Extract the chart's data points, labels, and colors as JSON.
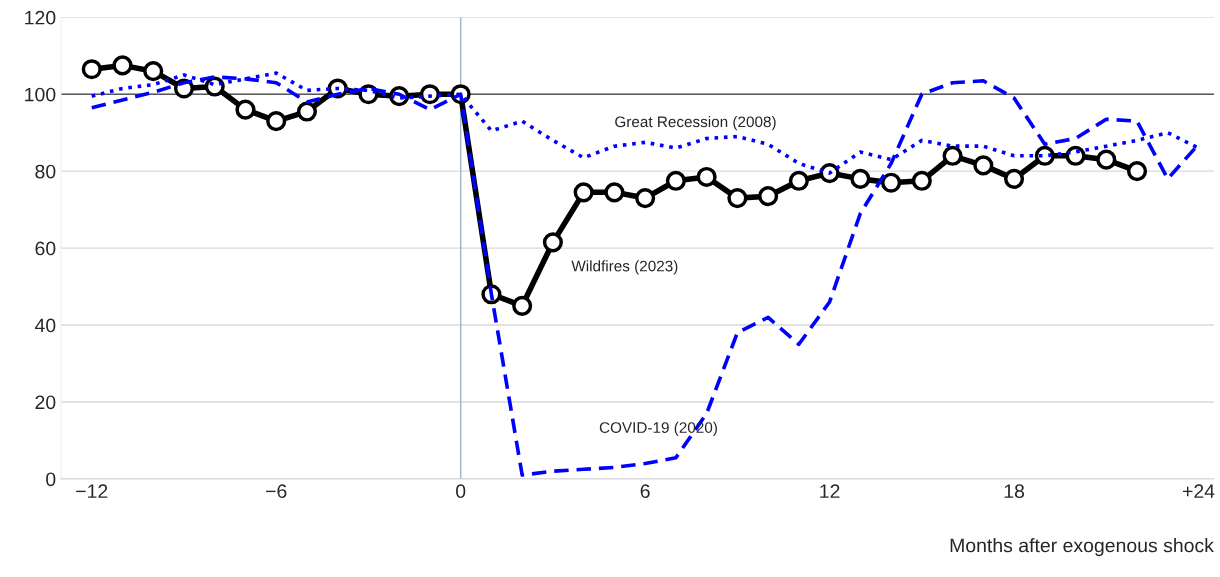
{
  "chart_data": {
    "type": "line",
    "xlabel": "Months after exogenous shock",
    "xlim": [
      -13,
      24.5
    ],
    "xticks": [
      -12,
      -6,
      0,
      6,
      12,
      18,
      {
        "value": 24,
        "label": "+24"
      }
    ],
    "ylim": [
      0,
      120
    ],
    "yticks": [
      0,
      20,
      40,
      60,
      80,
      100,
      120
    ],
    "grid": "y",
    "ref_lines": [
      {
        "axis": "y",
        "value": 100,
        "color": "#595959",
        "line_style": "solid"
      },
      {
        "axis": "x",
        "value": 0,
        "color": "#9db4c8",
        "line_style": "solid"
      }
    ],
    "series": [
      {
        "name": "Great Recession (2008)",
        "color": "#0000ff",
        "line_style": "dotted",
        "marker": "none",
        "x": [
          -12,
          -11,
          -10,
          -9,
          -8,
          -7,
          -6,
          -5,
          -4,
          -3,
          -2,
          -1,
          0,
          1,
          2,
          3,
          4,
          5,
          6,
          7,
          8,
          9,
          10,
          11,
          12,
          13,
          14,
          15,
          16,
          17,
          18,
          19,
          20,
          21,
          22,
          23,
          24
        ],
        "values": [
          99.5,
          101.5,
          102.5,
          105,
          102.5,
          104,
          105.5,
          101,
          101.5,
          101,
          99,
          99.5,
          100,
          90.5,
          93,
          88,
          83.5,
          86.5,
          87.5,
          86,
          88.5,
          89,
          87,
          82,
          79.5,
          85,
          83,
          88,
          86.5,
          86.5,
          84,
          84,
          85,
          86.5,
          88,
          90,
          86
        ]
      },
      {
        "name": "COVID-19 (2020)",
        "color": "#0000ff",
        "line_style": "dashed",
        "marker": "none",
        "x": [
          -12,
          -11,
          -10,
          -9,
          -8,
          -7,
          -6,
          -5,
          -4,
          -3,
          -2,
          -1,
          0,
          1,
          2,
          3,
          4,
          5,
          6,
          7,
          8,
          9,
          10,
          11,
          12,
          13,
          14,
          15,
          16,
          17,
          18,
          19,
          20,
          21,
          22,
          23,
          24
        ],
        "values": [
          96.5,
          98.5,
          100.5,
          103,
          104.5,
          104,
          103,
          98,
          100,
          101.5,
          100,
          96,
          100,
          48,
          1,
          2,
          2.5,
          3,
          4,
          5.5,
          17,
          38,
          42,
          35,
          46,
          69,
          82,
          100,
          103,
          103.5,
          99,
          87,
          88.5,
          93.5,
          93,
          78,
          87
        ]
      },
      {
        "name": "Wildfires (2023)",
        "color": "#000000",
        "line_style": "solid",
        "marker": "circle",
        "x": [
          -12,
          -11,
          -10,
          -9,
          -8,
          -7,
          -6,
          -5,
          -4,
          -3,
          -2,
          -1,
          0,
          1,
          2,
          3,
          4,
          5,
          6,
          7,
          8,
          9,
          10,
          11,
          12,
          13,
          14,
          15,
          16,
          17,
          18,
          19,
          20,
          21,
          22
        ],
        "values": [
          106.5,
          107.5,
          106,
          101.5,
          102,
          96,
          93,
          95.5,
          101.5,
          100,
          99.5,
          100,
          100,
          48,
          45,
          61.5,
          74.5,
          74.5,
          73,
          77.5,
          78.5,
          73,
          73.5,
          77.5,
          79.5,
          78,
          77,
          77.5,
          84,
          81.5,
          78,
          84,
          84,
          83,
          80
        ]
      }
    ]
  }
}
